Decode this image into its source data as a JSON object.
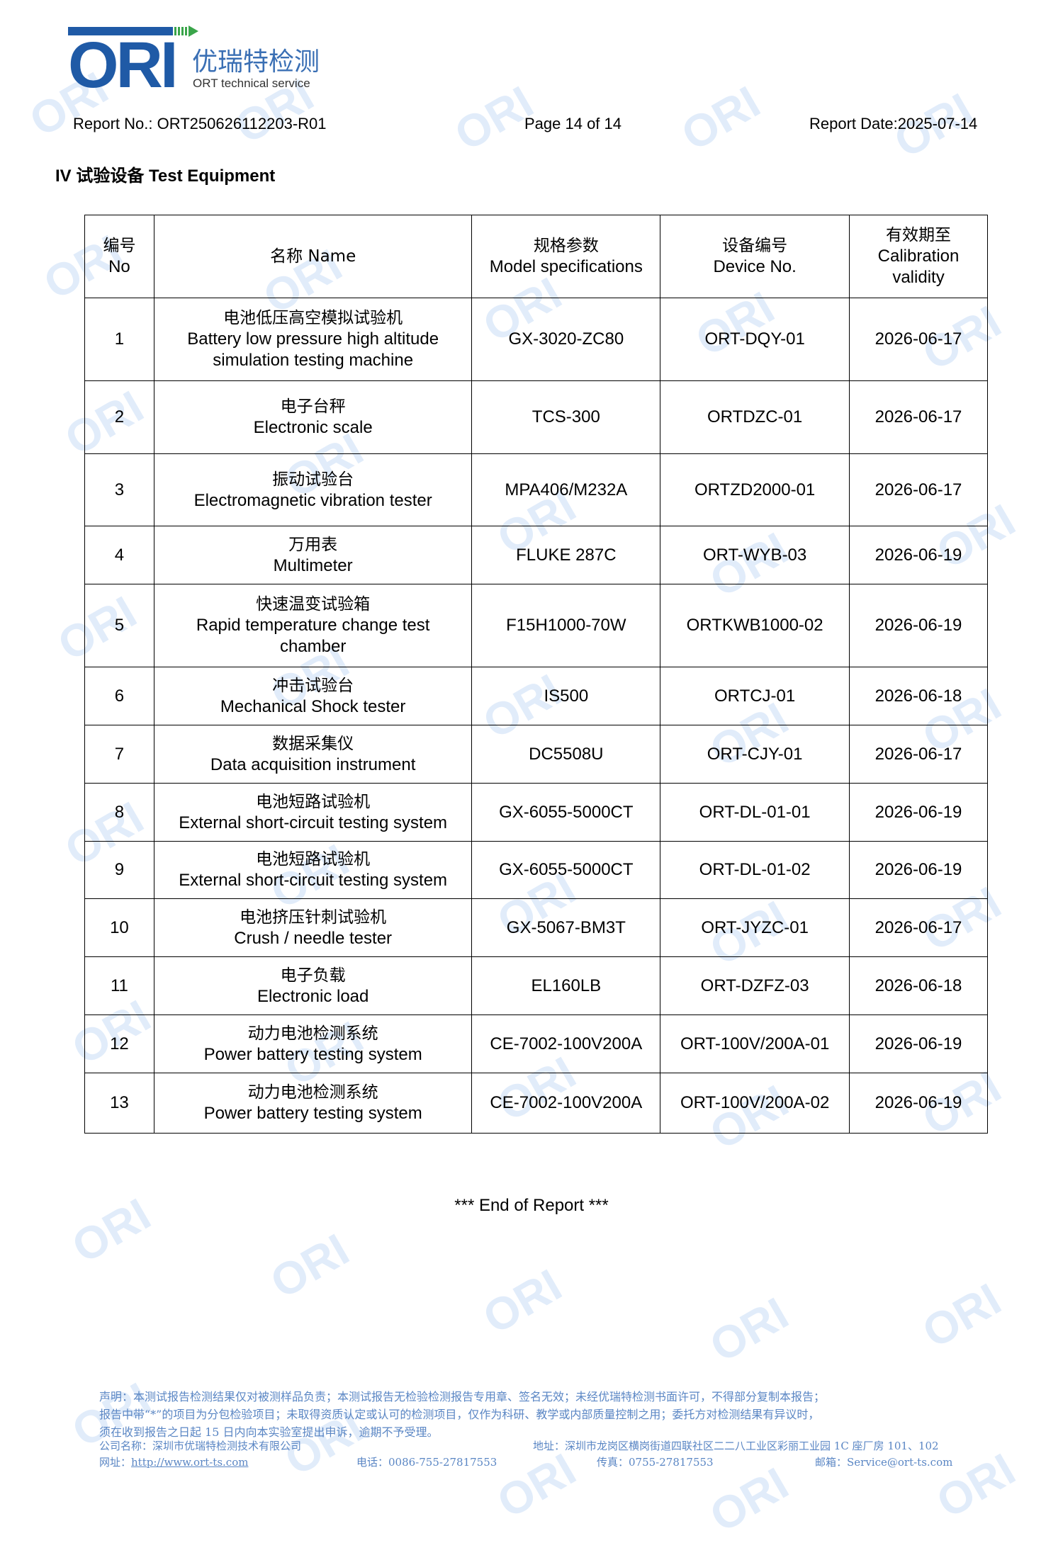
{
  "logo": {
    "mark": "ORI",
    "name_cn": "优瑞特检测",
    "name_en": "ORT technical service",
    "brand_color": "#1f5aa6",
    "accent_color": "#3aa54a"
  },
  "header": {
    "report_no": "Report No.: ORT250626112203-R01",
    "page": "Page 14 of 14",
    "report_date": "Report Date:2025-07-14"
  },
  "section_title": "IV  试验设备  Test Equipment",
  "table": {
    "headers": [
      {
        "cn": "编号",
        "en": "No"
      },
      {
        "cn": "名称 Name",
        "en": ""
      },
      {
        "cn": "规格参数",
        "en": "Model specifications"
      },
      {
        "cn": "设备编号",
        "en": "Device No."
      },
      {
        "cn": "有效期至",
        "en": "Calibration validity"
      }
    ],
    "rows": [
      {
        "no": "1",
        "name_cn": "电池低压高空模拟试验机",
        "name_en": "Battery low pressure high altitude simulation testing machine",
        "model": "GX-3020-ZC80",
        "device": "ORT-DQY-01",
        "validity": "2026-06-17"
      },
      {
        "no": "2",
        "name_cn": "电子台秤",
        "name_en": "Electronic scale",
        "model": "TCS-300",
        "device": "ORTDZC-01",
        "validity": "2026-06-17"
      },
      {
        "no": "3",
        "name_cn": "振动试验台",
        "name_en": "Electromagnetic vibration tester",
        "model": "MPA406/M232A",
        "device": "ORTZD2000-01",
        "validity": "2026-06-17"
      },
      {
        "no": "4",
        "name_cn": "万用表",
        "name_en": "Multimeter",
        "model": "FLUKE 287C",
        "device": "ORT-WYB-03",
        "validity": "2026-06-19"
      },
      {
        "no": "5",
        "name_cn": "快速温变试验箱",
        "name_en": "Rapid temperature change test chamber",
        "model": "F15H1000-70W",
        "device": "ORTKWB1000-02",
        "validity": "2026-06-19"
      },
      {
        "no": "6",
        "name_cn": "冲击试验台",
        "name_en": "Mechanical Shock tester",
        "model": "IS500",
        "device": "ORTCJ-01",
        "validity": "2026-06-18"
      },
      {
        "no": "7",
        "name_cn": "数据采集仪",
        "name_en": "Data acquisition instrument",
        "model": "DC5508U",
        "device": "ORT-CJY-01",
        "validity": "2026-06-17"
      },
      {
        "no": "8",
        "name_cn": "电池短路试验机",
        "name_en": "External short-circuit testing system",
        "model": "GX-6055-5000CT",
        "device": "ORT-DL-01-01",
        "validity": "2026-06-19"
      },
      {
        "no": "9",
        "name_cn": "电池短路试验机",
        "name_en": "External short-circuit testing system",
        "model": "GX-6055-5000CT",
        "device": "ORT-DL-01-02",
        "validity": "2026-06-19"
      },
      {
        "no": "10",
        "name_cn": "电池挤压针刺试验机",
        "name_en": "Crush / needle tester",
        "model": "GX-5067-BM3T",
        "device": "ORT-JYZC-01",
        "validity": "2026-06-17"
      },
      {
        "no": "11",
        "name_cn": "电子负载",
        "name_en": "Electronic load",
        "model": "EL160LB",
        "device": "ORT-DZFZ-03",
        "validity": "2026-06-18"
      },
      {
        "no": "12",
        "name_cn": "动力电池检测系统",
        "name_en": "Power battery testing system",
        "model": "CE-7002-100V200A",
        "device": "ORT-100V/200A-01",
        "validity": "2026-06-19"
      },
      {
        "no": "13",
        "name_cn": "动力电池检测系统",
        "name_en": "Power battery testing system",
        "model": "CE-7002-100V200A",
        "device": "ORT-100V/200A-02",
        "validity": "2026-06-19"
      }
    ]
  },
  "end_text": "*** End of Report ***",
  "footer": {
    "disclaimer": [
      "声明：本测试报告检测结果仅对被测样品负责；本测试报告无检验检测报告专用章、签名无效；未经优瑞特检测书面许可，不得部分复制本报告；",
      "报告中带“*”的项目为分包检验项目；未取得资质认定或认可的检测项目，仅作为科研、教学或内部质量控制之用；委托方对检测结果有异议时，",
      "须在收到报告之日起 15 日内向本实验室提出申诉，逾期不予受理。"
    ],
    "company": "公司名称：深圳市优瑞特检测技术有限公司",
    "address": "地址：深圳市龙岗区横岗街道四联社区二二八工业区彩丽工业园 1C 座厂房 101、102",
    "website_label": "网址：",
    "website": "http://www.ort-ts.com",
    "phone": "电话：0086-755-27817553",
    "fax": "传真：0755-27817553",
    "email": "邮箱：Service@ort-ts.com",
    "text_color": "#5a86c4"
  },
  "watermark": {
    "mark": "ORI",
    "text_cn": "优瑞特检测",
    "text_en": "ORT technical service"
  }
}
